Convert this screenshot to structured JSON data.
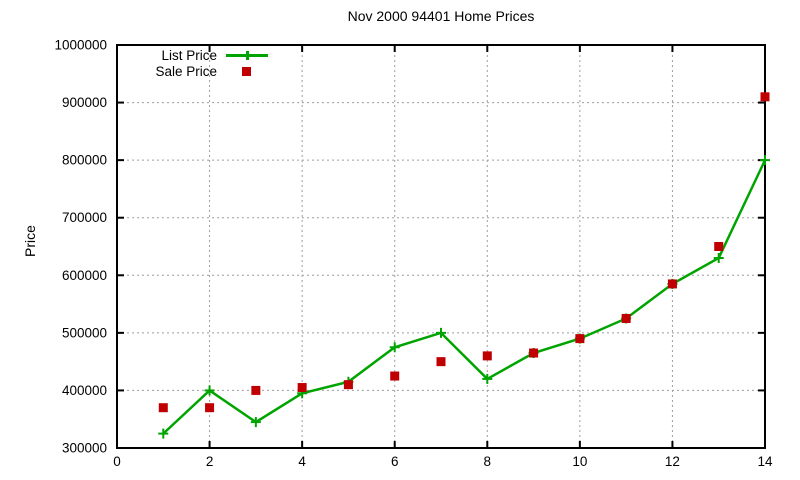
{
  "title": "Nov 2000 94401 Home Prices",
  "colors": {
    "list_series": "#00a400",
    "sale_series": "#c00000",
    "grid": "#9e9e9e",
    "border": "#000000",
    "background": "#ffffff",
    "text": "#000000"
  },
  "legend": {
    "entries": [
      {
        "label": "List Price",
        "series": "list_series",
        "marker": "line-plus"
      },
      {
        "label": "Sale Price",
        "series": "sale_series",
        "marker": "square"
      }
    ]
  },
  "chart_data": {
    "type": "line",
    "title": "Nov 2000 94401 Home Prices",
    "xlabel": "",
    "ylabel": "Price",
    "xlim": [
      0,
      14
    ],
    "ylim": [
      300000,
      1000000
    ],
    "x_ticks": [
      0,
      2,
      4,
      6,
      8,
      10,
      12,
      14
    ],
    "y_ticks": [
      300000,
      400000,
      500000,
      600000,
      700000,
      800000,
      900000,
      1000000
    ],
    "grid": true,
    "legend_position": "top-left-inside",
    "x": [
      1,
      2,
      3,
      4,
      5,
      6,
      7,
      8,
      9,
      10,
      11,
      12,
      13,
      14
    ],
    "series": [
      {
        "name": "List Price",
        "style": "line-plus",
        "color": "#00a400",
        "values": [
          325000,
          400000,
          345000,
          395000,
          415000,
          475000,
          500000,
          420000,
          465000,
          490000,
          525000,
          585000,
          630000,
          800000
        ]
      },
      {
        "name": "Sale Price",
        "style": "square",
        "color": "#c00000",
        "values": [
          370000,
          370000,
          400000,
          405000,
          410000,
          425000,
          450000,
          460000,
          465000,
          490000,
          525000,
          585000,
          650000,
          910000
        ]
      }
    ]
  }
}
